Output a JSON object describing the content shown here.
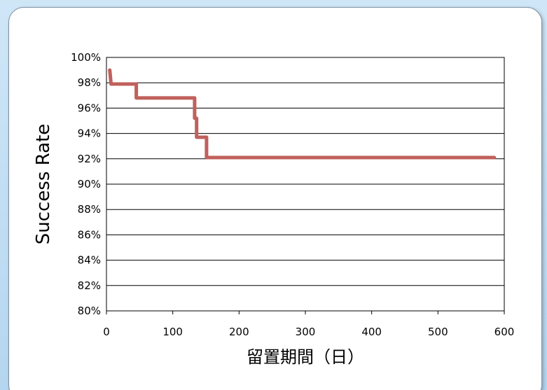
{
  "chart_data": {
    "type": "line",
    "title": "",
    "xlabel": "留置期間（日）",
    "ylabel": "Success Rate",
    "xlim": [
      0,
      600
    ],
    "ylim": [
      80,
      100
    ],
    "x_ticks": [
      0,
      100,
      200,
      300,
      400,
      500,
      600
    ],
    "x_tick_labels": [
      "0",
      "100",
      "200",
      "300",
      "400",
      "500",
      "600"
    ],
    "y_ticks": [
      80,
      82,
      84,
      86,
      88,
      90,
      92,
      94,
      96,
      98,
      100
    ],
    "y_tick_labels": [
      "80%",
      "82%",
      "84%",
      "86%",
      "88%",
      "90%",
      "92%",
      "94%",
      "96%",
      "98%",
      "100%"
    ],
    "grid": "horizontal",
    "legend": "none",
    "series_color": "#c0605c",
    "series": [
      {
        "x": [
          5,
          7,
          45,
          45,
          133,
          133,
          136,
          136,
          140,
          140,
          151,
          151,
          585
        ],
        "y": [
          99.0,
          97.9,
          97.9,
          96.8,
          96.8,
          95.2,
          95.2,
          93.7,
          93.7,
          93.7,
          93.7,
          92.1,
          92.1
        ]
      }
    ]
  }
}
